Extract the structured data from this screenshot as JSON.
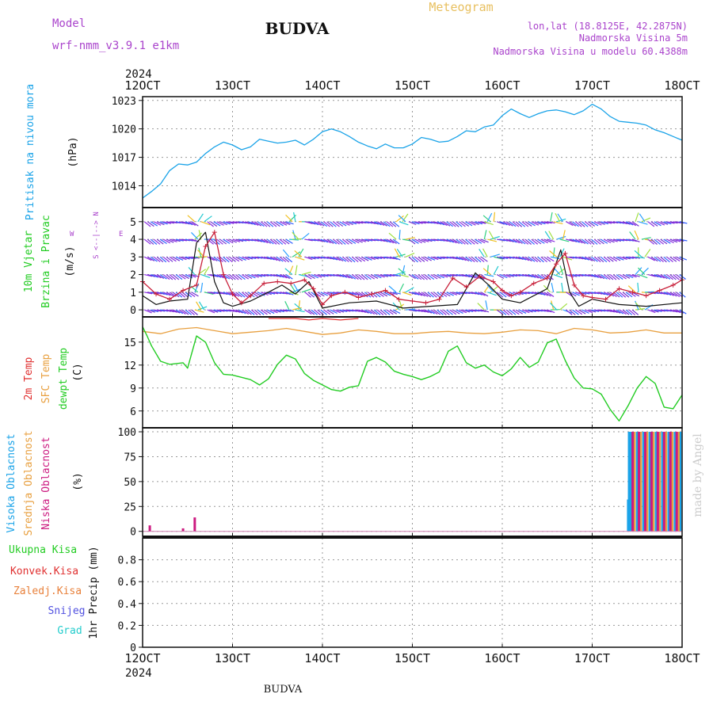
{
  "header": {
    "model_label": "Model",
    "model_name": "wrf-nmm_v3.9.1  e1km",
    "station": "BUDVA",
    "product": "Meteogram",
    "lonlat": "lon,lat (18.8125E, 42.2875N)",
    "elevation": "Nadmorska Visina 5m",
    "model_elevation": "Nadmorska Visina u modelu 60.4388m",
    "footer_station": "BUDVA",
    "credit": "made by Angel",
    "year_top": "2024",
    "year_bottom": "2024"
  },
  "colors": {
    "pressure": "#1aa3e8",
    "wind_speed": "#c8203a",
    "wind_gust": "#111111",
    "temp_2m": "#e03030",
    "temp_sfc": "#e8a040",
    "dewpoint": "#22cc22",
    "cloud_high": "#1aa3e8",
    "cloud_mid": "#e8a040",
    "cloud_low": "#cc1a80",
    "label_purple": "#aa44cc",
    "label_gold": "#e8c060",
    "grid": "#999999"
  },
  "time_axis": {
    "labels": [
      "12OCT",
      "13OCT",
      "14OCT",
      "15OCT",
      "16OCT",
      "17OCT",
      "18OCT"
    ],
    "range_days": [
      0,
      6
    ]
  },
  "chart_data": [
    {
      "type": "line",
      "panel": "pressure",
      "ylabel_main": "Pritisak na nivou mora",
      "ylabel_unit": "(hPa)",
      "ylim": [
        1011.7,
        1023.4
      ],
      "yticks": [
        1014,
        1017,
        1020,
        1023
      ],
      "series": [
        {
          "key": "slp",
          "x": [
            0,
            0.1,
            0.2,
            0.3,
            0.4,
            0.5,
            0.6,
            0.7,
            0.8,
            0.9,
            1.0,
            1.1,
            1.2,
            1.3,
            1.4,
            1.5,
            1.6,
            1.7,
            1.8,
            1.9,
            2.0,
            2.1,
            2.2,
            2.3,
            2.4,
            2.5,
            2.6,
            2.7,
            2.8,
            2.9,
            3.0,
            3.1,
            3.2,
            3.3,
            3.4,
            3.5,
            3.6,
            3.7,
            3.8,
            3.9,
            4.0,
            4.1,
            4.2,
            4.3,
            4.4,
            4.5,
            4.6,
            4.7,
            4.8,
            4.9,
            5.0,
            5.1,
            5.2,
            5.3,
            5.4,
            5.5,
            5.6,
            5.7,
            5.8,
            5.9,
            6.0
          ],
          "values": [
            1012.7,
            1013.4,
            1014.2,
            1015.6,
            1016.3,
            1016.2,
            1016.5,
            1017.4,
            1018.1,
            1018.6,
            1018.3,
            1017.8,
            1018.1,
            1018.9,
            1018.7,
            1018.5,
            1018.6,
            1018.8,
            1018.3,
            1018.9,
            1019.7,
            1020.0,
            1019.7,
            1019.2,
            1018.6,
            1018.2,
            1017.9,
            1018.4,
            1018.0,
            1018.0,
            1018.4,
            1019.1,
            1018.9,
            1018.6,
            1018.7,
            1019.2,
            1019.8,
            1019.7,
            1020.2,
            1020.4,
            1021.4,
            1022.1,
            1021.6,
            1021.2,
            1021.6,
            1021.9,
            1022.0,
            1021.8,
            1021.5,
            1021.9,
            1022.6,
            1022.1,
            1021.3,
            1020.8,
            1020.7,
            1020.6,
            1020.4,
            1019.9,
            1019.6,
            1019.2,
            1018.8
          ]
        }
      ]
    },
    {
      "type": "line",
      "panel": "wind",
      "ylabel_main": "10m Vjetar",
      "ylabel_sub": "Brzina i Pravac",
      "ylabel_unit": "(m/s)",
      "compass": "N / S / E / W",
      "ylim": [
        -0.4,
        5.8
      ],
      "yticks": [
        0,
        1,
        2,
        3,
        4,
        5
      ],
      "series": [
        {
          "key": "speed",
          "x": [
            0,
            0.15,
            0.3,
            0.45,
            0.6,
            0.7,
            0.8,
            0.9,
            1.0,
            1.1,
            1.2,
            1.35,
            1.5,
            1.65,
            1.8,
            1.9,
            2.0,
            2.1,
            2.25,
            2.4,
            2.55,
            2.7,
            2.85,
            3.0,
            3.15,
            3.3,
            3.45,
            3.6,
            3.75,
            3.9,
            4.0,
            4.1,
            4.2,
            4.35,
            4.5,
            4.6,
            4.7,
            4.8,
            4.9,
            5.0,
            5.15,
            5.3,
            5.45,
            5.6,
            5.75,
            5.9,
            6.0
          ],
          "values": [
            1.6,
            0.9,
            0.6,
            1.1,
            1.4,
            3.6,
            4.4,
            2.0,
            0.9,
            0.4,
            0.8,
            1.5,
            1.6,
            1.5,
            1.7,
            1.2,
            0.3,
            0.8,
            1.0,
            0.7,
            0.9,
            1.1,
            0.6,
            0.5,
            0.4,
            0.6,
            1.8,
            1.3,
            1.9,
            1.6,
            1.1,
            0.8,
            1.0,
            1.5,
            1.8,
            2.6,
            3.2,
            1.4,
            0.8,
            0.7,
            0.6,
            1.2,
            1.0,
            0.8,
            1.1,
            1.4,
            1.7
          ]
        },
        {
          "key": "gust",
          "x": [
            0,
            0.15,
            0.3,
            0.5,
            0.6,
            0.7,
            0.8,
            0.9,
            1.0,
            1.2,
            1.4,
            1.55,
            1.7,
            1.85,
            2.0,
            2.3,
            2.6,
            2.9,
            3.2,
            3.5,
            3.7,
            3.85,
            4.0,
            4.2,
            4.5,
            4.65,
            4.75,
            4.85,
            5.0,
            5.3,
            5.6,
            6.0
          ],
          "values": [
            0.8,
            0.3,
            0.5,
            0.6,
            3.8,
            4.4,
            1.6,
            0.4,
            0.2,
            0.5,
            1.0,
            1.4,
            0.9,
            1.6,
            0.1,
            0.4,
            0.5,
            0.1,
            0.2,
            0.3,
            2.1,
            1.4,
            0.6,
            0.4,
            1.2,
            3.4,
            1.0,
            0.2,
            0.6,
            0.3,
            0.2,
            0.4
          ]
        }
      ]
    },
    {
      "type": "line",
      "panel": "temperature",
      "ylabel_lines": [
        "2m Temp",
        "SFC Temp",
        "dewpt Temp"
      ],
      "ylabel_unit": "(C)",
      "ylim": [
        3.8,
        18.3
      ],
      "yticks": [
        6,
        9,
        12,
        15
      ],
      "series": [
        {
          "key": "t2m",
          "x": [
            1.4,
            1.55,
            1.7,
            1.85,
            2.0,
            2.2,
            2.4
          ],
          "values": [
            18.6,
            18.1,
            18.4,
            17.9,
            18.2,
            17.9,
            18.3
          ]
        },
        {
          "key": "tsfc",
          "x": [
            0,
            0.2,
            0.4,
            0.6,
            0.8,
            1.0,
            1.2,
            1.4,
            1.6,
            1.8,
            2.0,
            2.2,
            2.4,
            2.6,
            2.8,
            3.0,
            3.2,
            3.4,
            3.6,
            3.8,
            4.0,
            4.2,
            4.4,
            4.6,
            4.8,
            5.0,
            5.2,
            5.4,
            5.6,
            5.8,
            6.0
          ],
          "values": [
            16.4,
            16.1,
            16.7,
            16.9,
            16.5,
            16.1,
            16.3,
            16.5,
            16.8,
            16.4,
            16.0,
            16.2,
            16.6,
            16.4,
            16.1,
            16.1,
            16.3,
            16.4,
            16.2,
            16.1,
            16.3,
            16.6,
            16.5,
            16.1,
            16.8,
            16.6,
            16.2,
            16.3,
            16.6,
            16.2,
            16.2
          ]
        },
        {
          "key": "dewpt",
          "x": [
            0,
            0.05,
            0.1,
            0.2,
            0.3,
            0.45,
            0.5,
            0.6,
            0.7,
            0.8,
            0.9,
            1.0,
            1.1,
            1.2,
            1.3,
            1.4,
            1.5,
            1.6,
            1.7,
            1.8,
            1.9,
            2.0,
            2.1,
            2.2,
            2.3,
            2.4,
            2.5,
            2.6,
            2.7,
            2.8,
            2.9,
            3.0,
            3.1,
            3.2,
            3.3,
            3.4,
            3.5,
            3.6,
            3.7,
            3.8,
            3.9,
            4.0,
            4.1,
            4.2,
            4.3,
            4.4,
            4.5,
            4.6,
            4.7,
            4.8,
            4.9,
            5.0,
            5.1,
            5.2,
            5.3,
            5.4,
            5.5,
            5.6,
            5.7,
            5.8,
            5.9,
            6.0
          ],
          "values": [
            17.0,
            15.8,
            14.5,
            12.5,
            12.1,
            12.3,
            11.6,
            15.8,
            15.0,
            12.3,
            10.8,
            10.7,
            10.4,
            10.1,
            9.4,
            10.2,
            12.1,
            13.3,
            12.8,
            10.9,
            10.0,
            9.4,
            8.8,
            8.6,
            9.1,
            9.3,
            12.5,
            13.0,
            12.4,
            11.2,
            10.8,
            10.5,
            10.1,
            10.5,
            11.1,
            13.8,
            14.5,
            12.3,
            11.6,
            12.0,
            11.1,
            10.6,
            11.5,
            13.0,
            11.7,
            12.4,
            14.9,
            15.4,
            12.6,
            10.3,
            9.0,
            8.9,
            8.2,
            6.2,
            4.7,
            6.7,
            9.0,
            10.5,
            9.6,
            6.5,
            6.3,
            8.1
          ]
        }
      ]
    },
    {
      "type": "bar",
      "panel": "cloud_cover",
      "ylabel_lines": [
        "Visoka Oblacnost",
        "Srednja Oblacnost",
        "Niska Oblacnost"
      ],
      "ylabel_unit": "(%)",
      "ylim": [
        -5,
        104
      ],
      "yticks": [
        0,
        25,
        50,
        75,
        100
      ],
      "series": [
        {
          "key": "high",
          "x": [
            5.4,
            5.41,
            5.43,
            5.5,
            5.57,
            5.64,
            5.71,
            5.78,
            5.85,
            5.92,
            5.98
          ],
          "values": [
            32,
            100,
            100,
            100,
            100,
            100,
            100,
            100,
            100,
            100,
            100
          ]
        },
        {
          "key": "mid",
          "x": [
            5.47,
            5.54,
            5.61,
            5.68,
            5.75,
            5.82,
            5.89,
            5.96
          ],
          "values": [
            100,
            100,
            100,
            100,
            100,
            100,
            100,
            100
          ]
        },
        {
          "key": "low",
          "x": [
            0.08,
            0.45,
            0.58,
            5.45,
            5.52,
            5.59,
            5.66,
            5.73,
            5.8,
            5.87,
            5.94
          ],
          "values": [
            6,
            3,
            14,
            100,
            100,
            100,
            100,
            100,
            100,
            100,
            100
          ]
        }
      ]
    },
    {
      "type": "bar",
      "panel": "precipitation",
      "ylabel_main": "1hr Precip",
      "ylabel_unit": "(mm)",
      "legend": [
        "Ukupna Kisa",
        "Konvek.Kisa",
        "Zaledj.Kisa",
        "Snijeg",
        "Grad"
      ],
      "ylim": [
        0,
        1.0
      ],
      "yticks": [
        0,
        0.2,
        0.4,
        0.6,
        0.8
      ],
      "series": [
        {
          "key": "total",
          "values": []
        }
      ]
    }
  ]
}
